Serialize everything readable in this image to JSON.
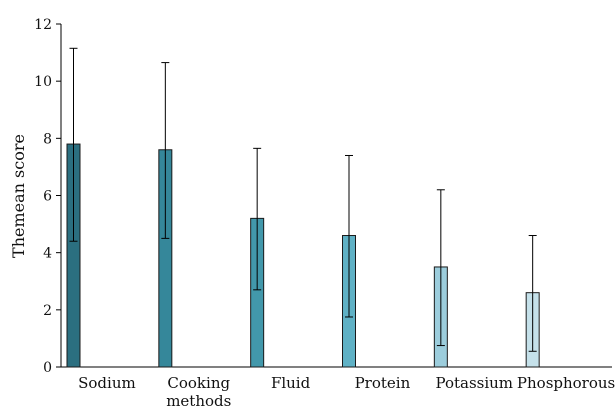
{
  "chart_data": {
    "type": "bar",
    "title": "",
    "xlabel": "",
    "ylabel": "Themean score",
    "ylim": [
      0,
      12
    ],
    "yticks": [
      0,
      2,
      4,
      6,
      8,
      10,
      12
    ],
    "grid": false,
    "legend": "none",
    "categories": [
      [
        "Sodium"
      ],
      [
        "Cooking",
        "methods"
      ],
      [
        "Fluid"
      ],
      [
        "Protein"
      ],
      [
        "Potassium"
      ],
      [
        "Phosphorous"
      ]
    ],
    "values": [
      7.8,
      7.6,
      5.2,
      4.6,
      3.5,
      2.6
    ],
    "error_low": [
      4.4,
      4.5,
      2.7,
      1.75,
      0.75,
      0.55
    ],
    "error_high": [
      11.15,
      10.65,
      7.65,
      7.4,
      6.2,
      4.6
    ],
    "colors": [
      "#2b6f80",
      "#35879a",
      "#4298ab",
      "#5fb1c5",
      "#9ccddc",
      "#c5e1ea"
    ]
  }
}
